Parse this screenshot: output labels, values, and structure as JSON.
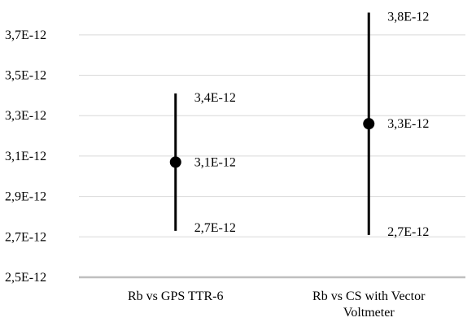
{
  "chart_data": {
    "type": "scatter",
    "subtype": "error-bar",
    "categories": [
      "Rb vs GPS TTR-6",
      "Rb vs CS with Vector Voltmeter"
    ],
    "category_label_lines": [
      [
        "Rb vs GPS TTR-6"
      ],
      [
        "Rb vs CS with Vector",
        "Voltmeter"
      ]
    ],
    "series": [
      {
        "values": [
          3.07e-12,
          3.26e-12
        ],
        "upper": [
          3.41e-12,
          3.81e-12
        ],
        "lower": [
          2.73e-12,
          2.71e-12
        ],
        "labels": {
          "upper": [
            "3,4E-12",
            "3,8E-12"
          ],
          "center": [
            "3,1E-12",
            "3,3E-12"
          ],
          "lower": [
            "2,7E-12",
            "2,7E-12"
          ]
        }
      }
    ],
    "ylim": [
      2.5e-12,
      3.8e-12
    ],
    "yticks": [
      2.5e-12,
      2.7e-12,
      2.9e-12,
      3.1e-12,
      3.3e-12,
      3.5e-12,
      3.7e-12
    ],
    "ytick_labels": [
      "2,5E-12",
      "2,7E-12",
      "2,9E-12",
      "3,1E-12",
      "3,3E-12",
      "3,5E-12",
      "3,7E-12"
    ],
    "grid": true,
    "legend": "none",
    "colors": {
      "marker": "#000000",
      "grid": "#d9d9d9",
      "axis": "#bfbfbf",
      "text": "#000000"
    }
  }
}
